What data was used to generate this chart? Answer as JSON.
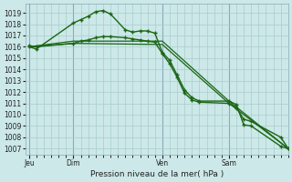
{
  "background_color": "#cce8e8",
  "grid_color": "#aacccc",
  "line_color": "#1a6614",
  "title": "Pression niveau de la mer( hPa )",
  "ylim": [
    1006.5,
    1019.8
  ],
  "yticks": [
    1007,
    1008,
    1009,
    1010,
    1011,
    1012,
    1013,
    1014,
    1015,
    1016,
    1017,
    1018,
    1019
  ],
  "day_labels": [
    "Jeu",
    "Dim",
    "Ven",
    "Sam"
  ],
  "day_positions": [
    0,
    6,
    18,
    27
  ],
  "xlim": [
    -0.5,
    35
  ],
  "num_gridlines": 36,
  "series1_x": [
    0,
    1,
    6,
    7,
    8,
    9,
    10,
    11,
    13,
    14,
    15,
    16,
    17,
    18,
    19,
    20,
    21,
    22,
    23,
    27,
    28,
    29,
    30,
    34,
    35
  ],
  "series1_y": [
    1016.0,
    1015.8,
    1018.1,
    1018.4,
    1018.7,
    1019.1,
    1019.2,
    1018.9,
    1017.5,
    1017.3,
    1017.4,
    1017.4,
    1017.2,
    1015.5,
    1014.8,
    1013.5,
    1012.2,
    1011.5,
    1011.2,
    1011.2,
    1010.9,
    1009.1,
    1009.0,
    1007.2,
    1007.0
  ],
  "series2_x": [
    0,
    1,
    6,
    7,
    8,
    9,
    10,
    11,
    13,
    14,
    15,
    16,
    17,
    18,
    19,
    20,
    21,
    22,
    23,
    27,
    28,
    29,
    30,
    34,
    35
  ],
  "series2_y": [
    1016.1,
    1016.0,
    1016.3,
    1016.5,
    1016.6,
    1016.8,
    1016.9,
    1016.9,
    1016.8,
    1016.7,
    1016.6,
    1016.5,
    1016.4,
    1015.4,
    1014.5,
    1013.3,
    1011.9,
    1011.3,
    1011.1,
    1011.0,
    1010.6,
    1009.6,
    1009.4,
    1008.0,
    1007.0
  ],
  "series3_x": [
    0,
    6,
    18,
    27,
    35
  ],
  "series3_y": [
    1016.0,
    1016.5,
    1016.5,
    1011.2,
    1007.0
  ],
  "series4_x": [
    0,
    6,
    18,
    27,
    35
  ],
  "series4_y": [
    1016.0,
    1016.3,
    1016.2,
    1011.0,
    1007.0
  ]
}
